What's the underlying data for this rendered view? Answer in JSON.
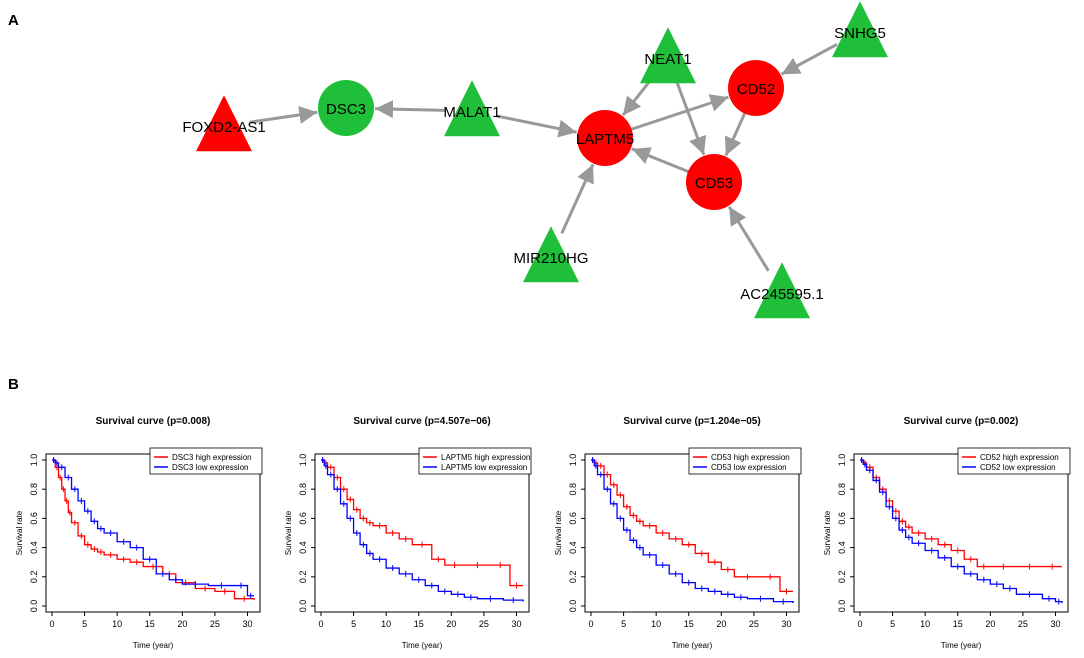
{
  "panel_a_label": "A",
  "panel_b_label": "B",
  "colors": {
    "red": "#ff0000",
    "green": "#1fbf3a",
    "edge": "#999999",
    "high": "#ff0000",
    "low": "#0000ff"
  },
  "network": {
    "nodes": [
      {
        "id": "FOXD2-AS1",
        "label": "FOXD2-AS1",
        "shape": "triangle",
        "color": "red"
      },
      {
        "id": "DSC3",
        "label": "DSC3",
        "shape": "circle",
        "color": "green"
      },
      {
        "id": "MALAT1",
        "label": "MALAT1",
        "shape": "triangle",
        "color": "green"
      },
      {
        "id": "NEAT1",
        "label": "NEAT1",
        "shape": "triangle",
        "color": "green"
      },
      {
        "id": "SNHG5",
        "label": "SNHG5",
        "shape": "triangle",
        "color": "green"
      },
      {
        "id": "CD52",
        "label": "CD52",
        "shape": "circle",
        "color": "red"
      },
      {
        "id": "LAPTM5",
        "label": "LAPTM5",
        "shape": "circle",
        "color": "red"
      },
      {
        "id": "CD53",
        "label": "CD53",
        "shape": "circle",
        "color": "red"
      },
      {
        "id": "MIR210HG",
        "label": "MIR210HG",
        "shape": "triangle",
        "color": "green"
      },
      {
        "id": "AC245595.1",
        "label": "AC245595.1",
        "shape": "triangle",
        "color": "green"
      }
    ],
    "edges": [
      {
        "from": "FOXD2-AS1",
        "to": "DSC3"
      },
      {
        "from": "MALAT1",
        "to": "DSC3"
      },
      {
        "from": "MALAT1",
        "to": "LAPTM5"
      },
      {
        "from": "NEAT1",
        "to": "LAPTM5"
      },
      {
        "from": "NEAT1",
        "to": "CD53"
      },
      {
        "from": "SNHG5",
        "to": "CD52"
      },
      {
        "from": "LAPTM5",
        "to": "CD52"
      },
      {
        "from": "CD52",
        "to": "CD53"
      },
      {
        "from": "CD53",
        "to": "LAPTM5"
      },
      {
        "from": "MIR210HG",
        "to": "LAPTM5"
      },
      {
        "from": "AC245595.1",
        "to": "CD53"
      }
    ]
  },
  "chart_data": [
    {
      "type": "line",
      "title": "Survival curve (p=0.008)",
      "xlabel": "Time (year)",
      "ylabel": "Survival rate",
      "xlim": [
        0,
        31
      ],
      "ylim": [
        0,
        1
      ],
      "xticks": [
        "0",
        "5",
        "10",
        "15",
        "20",
        "25",
        "30"
      ],
      "yticks": [
        "0.0",
        "0.2",
        "0.4",
        "0.6",
        "0.8",
        "1.0"
      ],
      "legend": "top-right",
      "series": [
        {
          "name": "DSC3 high expression",
          "color": "high",
          "x": [
            0,
            0.5,
            1,
            1.5,
            2,
            2.5,
            3,
            4,
            5,
            6,
            7,
            8,
            10,
            12,
            14,
            17,
            19,
            22,
            25,
            28,
            31
          ],
          "y": [
            1.0,
            0.95,
            0.88,
            0.8,
            0.72,
            0.64,
            0.57,
            0.48,
            0.42,
            0.39,
            0.37,
            0.35,
            0.32,
            0.3,
            0.27,
            0.22,
            0.16,
            0.12,
            0.1,
            0.05,
            0.04
          ]
        },
        {
          "name": "DSC3 low expression",
          "color": "low",
          "x": [
            0,
            0.5,
            1,
            2,
            3,
            4,
            5,
            6,
            7,
            8,
            10,
            12,
            14,
            16,
            18,
            20,
            24,
            28,
            30,
            31
          ],
          "y": [
            1.0,
            0.98,
            0.95,
            0.88,
            0.8,
            0.72,
            0.65,
            0.58,
            0.53,
            0.5,
            0.44,
            0.4,
            0.32,
            0.22,
            0.18,
            0.15,
            0.14,
            0.14,
            0.07,
            0.07
          ]
        }
      ]
    },
    {
      "type": "line",
      "title": "Survival curve (p=4.507e−06)",
      "xlabel": "Time (year)",
      "ylabel": "Survival rate",
      "xlim": [
        0,
        31
      ],
      "ylim": [
        0,
        1
      ],
      "xticks": [
        "0",
        "5",
        "10",
        "15",
        "20",
        "25",
        "30"
      ],
      "yticks": [
        "0.0",
        "0.2",
        "0.4",
        "0.6",
        "0.8",
        "1.0"
      ],
      "legend": "top-right",
      "series": [
        {
          "name": "LAPTM5 high expression",
          "color": "high",
          "x": [
            0,
            0.5,
            1,
            2,
            3,
            4,
            5,
            6,
            7,
            8,
            10,
            12,
            14,
            17,
            19,
            22,
            26,
            29,
            31
          ],
          "y": [
            1.0,
            0.98,
            0.95,
            0.88,
            0.8,
            0.73,
            0.66,
            0.6,
            0.57,
            0.55,
            0.5,
            0.46,
            0.42,
            0.32,
            0.28,
            0.28,
            0.28,
            0.14,
            0.14
          ]
        },
        {
          "name": "LAPTM5 low expression",
          "color": "low",
          "x": [
            0,
            0.5,
            1,
            2,
            3,
            4,
            5,
            6,
            7,
            8,
            10,
            12,
            14,
            16,
            18,
            20,
            22,
            24,
            28,
            31
          ],
          "y": [
            1.0,
            0.96,
            0.9,
            0.8,
            0.7,
            0.6,
            0.5,
            0.42,
            0.36,
            0.32,
            0.26,
            0.22,
            0.18,
            0.14,
            0.1,
            0.08,
            0.06,
            0.05,
            0.04,
            0.03
          ]
        }
      ]
    },
    {
      "type": "line",
      "title": "Survival curve (p=1.204e−05)",
      "xlabel": "Time (year)",
      "ylabel": "Survival rate",
      "xlim": [
        0,
        31
      ],
      "ylim": [
        0,
        1
      ],
      "xticks": [
        "0",
        "5",
        "10",
        "15",
        "20",
        "25",
        "30"
      ],
      "yticks": [
        "0.0",
        "0.2",
        "0.4",
        "0.6",
        "0.8",
        "1.0"
      ],
      "legend": "top-right",
      "series": [
        {
          "name": "CD53 high expression",
          "color": "high",
          "x": [
            0,
            0.5,
            1,
            2,
            3,
            4,
            5,
            6,
            7,
            8,
            10,
            12,
            14,
            16,
            18,
            20,
            22,
            26,
            29,
            31
          ],
          "y": [
            1.0,
            0.98,
            0.96,
            0.9,
            0.83,
            0.76,
            0.68,
            0.62,
            0.58,
            0.55,
            0.5,
            0.46,
            0.42,
            0.36,
            0.3,
            0.25,
            0.2,
            0.2,
            0.1,
            0.1
          ]
        },
        {
          "name": "CD53 low expression",
          "color": "low",
          "x": [
            0,
            0.5,
            1,
            2,
            3,
            4,
            5,
            6,
            7,
            8,
            10,
            12,
            14,
            16,
            18,
            20,
            22,
            24,
            28,
            31
          ],
          "y": [
            1.0,
            0.96,
            0.9,
            0.8,
            0.7,
            0.6,
            0.52,
            0.45,
            0.4,
            0.35,
            0.28,
            0.22,
            0.16,
            0.12,
            0.1,
            0.08,
            0.06,
            0.05,
            0.03,
            0.02
          ]
        }
      ]
    },
    {
      "type": "line",
      "title": "Survival curve (p=0.002)",
      "xlabel": "Time (year)",
      "ylabel": "Survival rate",
      "xlim": [
        0,
        31
      ],
      "ylim": [
        0,
        1
      ],
      "xticks": [
        "0",
        "5",
        "10",
        "15",
        "20",
        "25",
        "30"
      ],
      "yticks": [
        "0.0",
        "0.2",
        "0.4",
        "0.6",
        "0.8",
        "1.0"
      ],
      "legend": "top-right",
      "series": [
        {
          "name": "CD52 high expression",
          "color": "high",
          "x": [
            0,
            0.5,
            1,
            2,
            3,
            4,
            5,
            6,
            7,
            8,
            10,
            12,
            14,
            16,
            18,
            20,
            24,
            28,
            31
          ],
          "y": [
            1.0,
            0.98,
            0.95,
            0.88,
            0.8,
            0.72,
            0.65,
            0.58,
            0.54,
            0.5,
            0.46,
            0.42,
            0.38,
            0.32,
            0.27,
            0.27,
            0.27,
            0.27,
            0.27
          ]
        },
        {
          "name": "CD52 low expression",
          "color": "low",
          "x": [
            0,
            0.5,
            1,
            2,
            3,
            4,
            5,
            6,
            7,
            8,
            10,
            12,
            14,
            16,
            18,
            20,
            22,
            24,
            28,
            30,
            31
          ],
          "y": [
            1.0,
            0.97,
            0.93,
            0.86,
            0.78,
            0.68,
            0.6,
            0.52,
            0.47,
            0.43,
            0.38,
            0.33,
            0.27,
            0.22,
            0.18,
            0.15,
            0.12,
            0.08,
            0.05,
            0.03,
            0.02
          ]
        }
      ]
    }
  ]
}
